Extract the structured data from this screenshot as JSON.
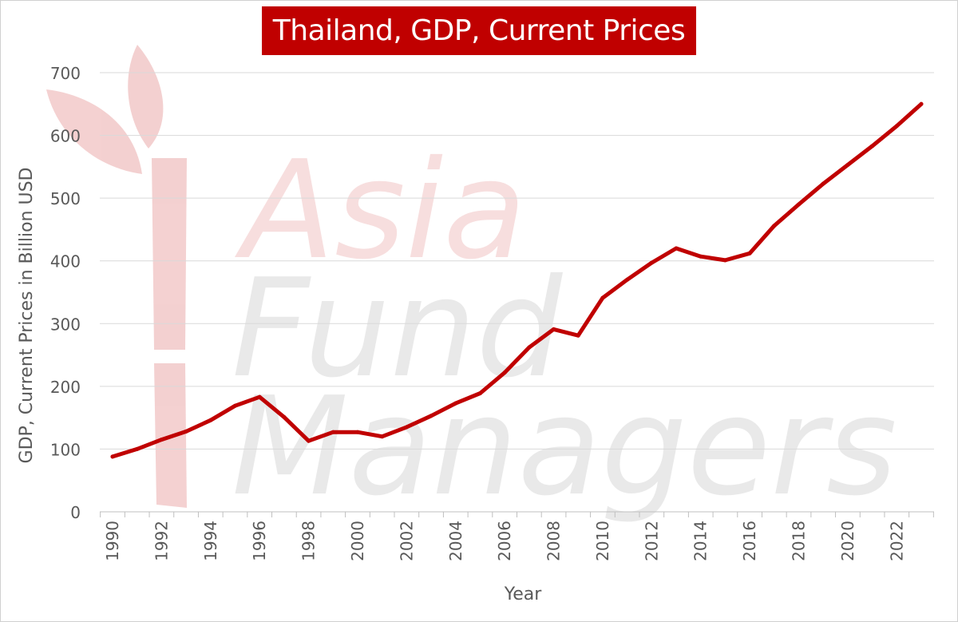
{
  "watermark": {
    "line1": "Asia",
    "line2": "Fund",
    "line3": "Managers"
  },
  "chart_data": {
    "type": "line",
    "title": "Thailand, GDP, Current Prices",
    "xlabel": "Year",
    "ylabel": "GDP, Current Prices in Billion USD",
    "xlim": [
      1990,
      2023
    ],
    "ylim": [
      0,
      700
    ],
    "yticks": [
      0,
      100,
      200,
      300,
      400,
      500,
      600,
      700
    ],
    "xticks": [
      1990,
      1992,
      1994,
      1996,
      1998,
      2000,
      2002,
      2004,
      2006,
      2008,
      2010,
      2012,
      2014,
      2016,
      2018,
      2020,
      2022
    ],
    "grid": true,
    "line_color": "#c00000",
    "x": [
      1990,
      1991,
      1992,
      1993,
      1994,
      1995,
      1996,
      1997,
      1998,
      1999,
      2000,
      2001,
      2002,
      2003,
      2004,
      2005,
      2006,
      2007,
      2008,
      2009,
      2010,
      2011,
      2012,
      2013,
      2014,
      2015,
      2016,
      2017,
      2018,
      2019,
      2020,
      2021,
      2022,
      2023
    ],
    "values": [
      88,
      100,
      115,
      128,
      146,
      169,
      183,
      151,
      113,
      127,
      127,
      120,
      135,
      153,
      173,
      189,
      222,
      262,
      291,
      281,
      341,
      370,
      397,
      420,
      407,
      401,
      412,
      456,
      490,
      523,
      553,
      583,
      615,
      650
    ]
  }
}
